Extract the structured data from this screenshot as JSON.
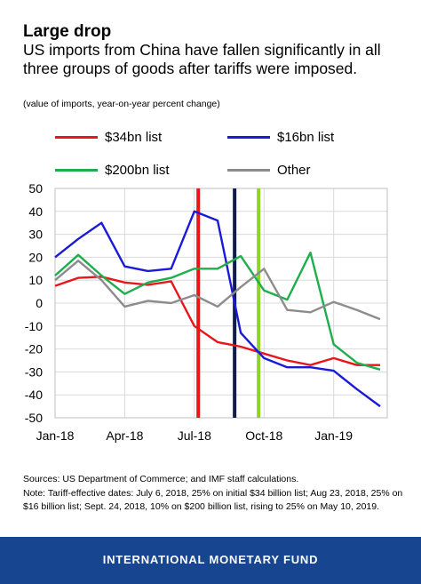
{
  "header": {
    "title": "Large drop",
    "subtitle": "US imports from China have fallen significantly in all three groups of goods after tariffs were imposed.",
    "unit": "(value of imports, year-on-year percent change)"
  },
  "legend": [
    {
      "label": "$34bn list",
      "color": "#e8161b"
    },
    {
      "label": "$16bn list",
      "color": "#1a1ad8"
    },
    {
      "label": "$200bn list",
      "color": "#1fae4b"
    },
    {
      "label": "Other",
      "color": "#8c8c8c"
    }
  ],
  "chart_data": {
    "type": "line",
    "title": "Large drop",
    "x": [
      "2018-01",
      "2018-02",
      "2018-03",
      "2018-04",
      "2018-05",
      "2018-06",
      "2018-07",
      "2018-08",
      "2018-09",
      "2018-10",
      "2018-11",
      "2018-12",
      "2019-01",
      "2019-02",
      "2019-03"
    ],
    "x_tick_labels": [
      "Jan-18",
      "Apr-18",
      "Jul-18",
      "Oct-18",
      "Jan-19"
    ],
    "ylim": [
      -50,
      50
    ],
    "y_ticks": [
      50,
      40,
      30,
      20,
      10,
      0,
      -10,
      -20,
      -30,
      -40,
      -50
    ],
    "series": [
      {
        "name": "$34bn list",
        "color": "#e8161b",
        "values": [
          7.5,
          11,
          11.5,
          9,
          8,
          9.5,
          -10,
          -17,
          -19,
          -22,
          -25,
          -27,
          -24,
          -27,
          -27
        ]
      },
      {
        "name": "$16bn list",
        "color": "#1a1ad8",
        "values": [
          20,
          28,
          35,
          16,
          14,
          15,
          40,
          36,
          -13,
          -24,
          -28,
          -28,
          -29.5,
          -37.5,
          -45
        ]
      },
      {
        "name": "$200bn list",
        "color": "#1fae4b",
        "values": [
          12,
          21,
          12,
          4,
          9,
          11,
          15,
          15,
          20.5,
          5.5,
          1.5,
          22,
          -18,
          -26,
          -29
        ]
      },
      {
        "name": "Other",
        "color": "#8c8c8c",
        "values": [
          10,
          18.5,
          10,
          -1.5,
          1,
          0,
          3.5,
          -1.5,
          7,
          15,
          -3,
          -4,
          0.5,
          -3,
          -7
        ]
      }
    ],
    "markers": [
      {
        "date": "2018-07-06",
        "color": "#e8161b"
      },
      {
        "date": "2018-08-23",
        "color": "#101c4a"
      },
      {
        "date": "2018-09-24",
        "color": "#8fd22a"
      }
    ],
    "grid": true
  },
  "sources": {
    "line1": "Sources: US Department of Commerce; and IMF staff calculations.",
    "line2": "Note: Tariff-effective dates: July 6, 2018, 25% on initial $34 billion list; Aug 23, 2018, 25% on $16 billion list; Sept. 24, 2018, 10% on $200 billion list, rising to 25% on May 10, 2019."
  },
  "footer": {
    "label": "INTERNATIONAL MONETARY FUND"
  }
}
